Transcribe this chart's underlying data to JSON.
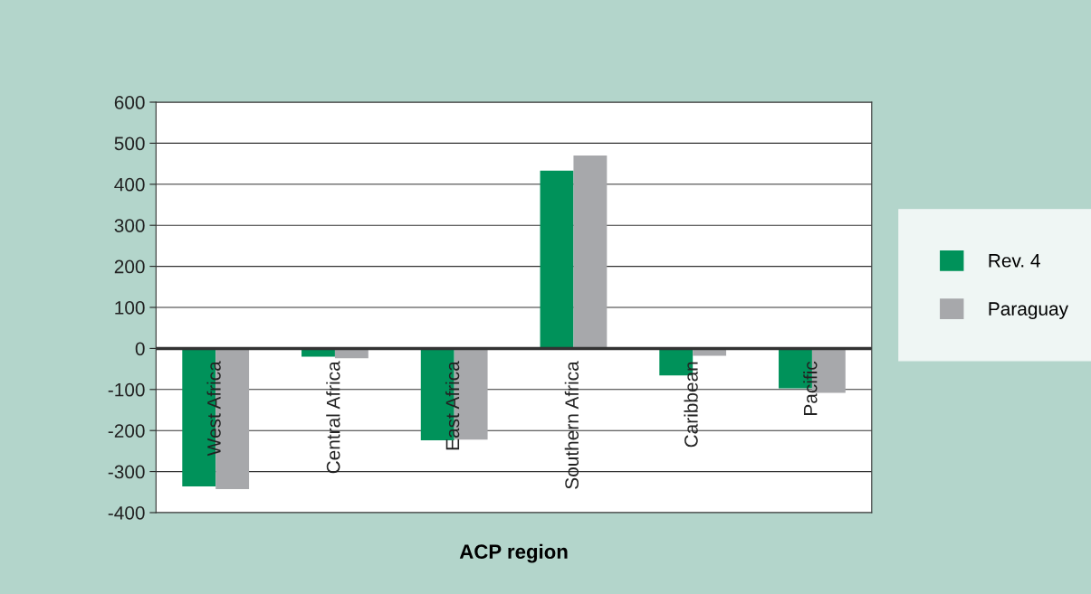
{
  "chart_data": {
    "type": "bar",
    "xlabel": "ACP region",
    "categories": [
      "West Africa",
      "Central Africa",
      "East Africa",
      "Southern Africa",
      "Caribbean",
      "Pacific"
    ],
    "series": [
      {
        "name": "Rev. 4",
        "color": "#00925a",
        "values": [
          -336,
          -20,
          -224,
          433,
          -66,
          -97
        ]
      },
      {
        "name": "Paraguay",
        "color": "#a7a8ab",
        "values": [
          -343,
          -24,
          -222,
          470,
          -18,
          -108
        ]
      }
    ],
    "ylim": [
      -400,
      600
    ],
    "yticks": [
      -400,
      -300,
      -200,
      -100,
      0,
      100,
      200,
      300,
      400,
      500,
      600
    ],
    "grid": "y",
    "legend": "right"
  }
}
